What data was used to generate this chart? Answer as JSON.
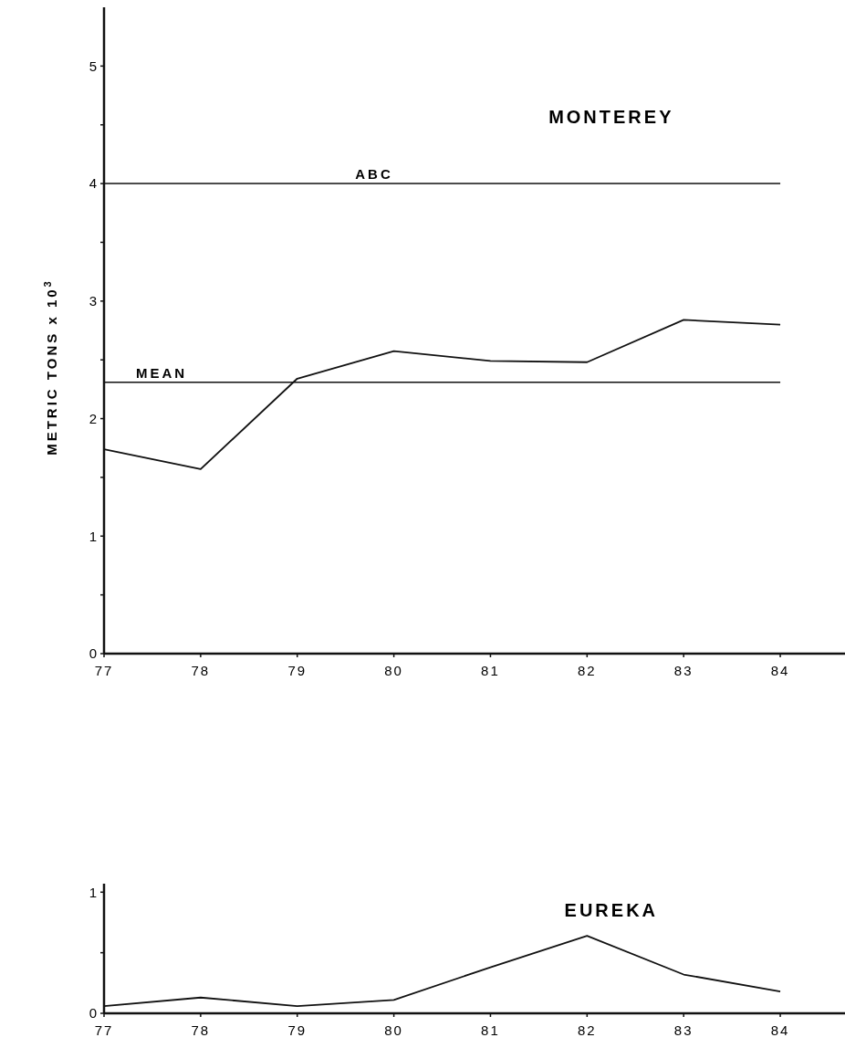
{
  "chart_data": [
    {
      "type": "line",
      "title": "MONTEREY",
      "ylabel": "METRIC TONS x 10$^{3}$",
      "x": [
        77,
        78,
        79,
        80,
        81,
        82,
        83,
        84
      ],
      "series": [
        {
          "color": "#111111",
          "values": [
            1.74,
            1.57,
            2.34,
            2.575,
            2.49,
            2.48,
            2.84,
            2.8
          ]
        }
      ],
      "xlim": [
        77,
        84.67
      ],
      "xticks": [
        77,
        78,
        79,
        80,
        81,
        82,
        83,
        84
      ],
      "ylim": [
        0,
        5.5
      ],
      "yticks": [
        0,
        {
          "value": 0.5,
          "label": null
        },
        1,
        {
          "value": 1.5,
          "label": null
        },
        2,
        {
          "value": 2.5,
          "label": null
        },
        3,
        {
          "value": 3.5,
          "label": null
        },
        4,
        {
          "value": 4.5,
          "label": null
        },
        5
      ],
      "ref_lines": [
        {
          "axis": "y",
          "value": 4,
          "label": "ABC",
          "color": "#111111"
        },
        {
          "axis": "y",
          "value": 2.31,
          "label": "MEAN",
          "color": "#111111"
        }
      ],
      "grid": false,
      "marker": "none",
      "line_style": "solid"
    },
    {
      "type": "line",
      "title": "EUREKA",
      "x": [
        77,
        78,
        79,
        80,
        81,
        82,
        83,
        84
      ],
      "series": [
        {
          "color": "#111111",
          "values": [
            0.06,
            0.13,
            0.06,
            0.11,
            0.38,
            0.64,
            0.32,
            0.18
          ]
        }
      ],
      "xlim": [
        77,
        84.67
      ],
      "xticks": [
        77,
        78,
        79,
        80,
        81,
        82,
        83,
        84
      ],
      "ylim": [
        0,
        1.07
      ],
      "yticks": [
        0,
        {
          "value": 0.5,
          "label": null
        },
        1
      ],
      "grid": false,
      "marker": "none",
      "line_style": "solid"
    }
  ]
}
